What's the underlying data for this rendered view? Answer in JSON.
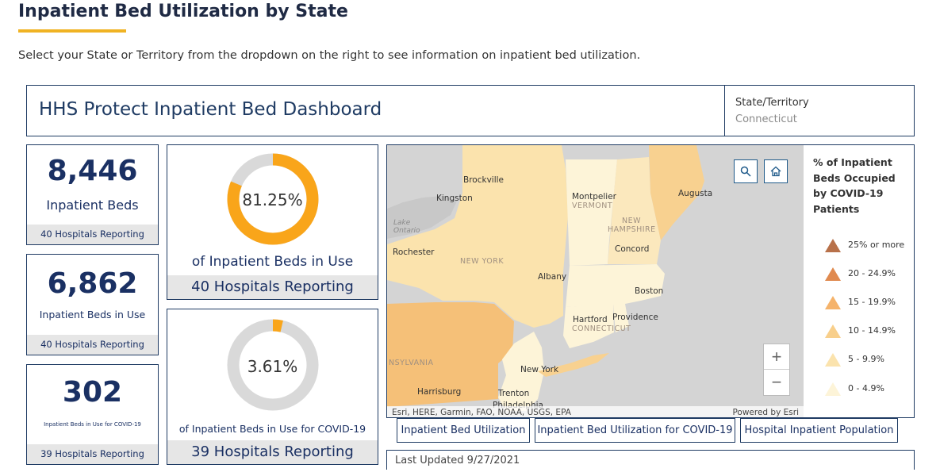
{
  "page": {
    "title": "Inpatient Bed Utilization by State",
    "intro": "Select your State or Territory from the dropdown on the right to see information on inpatient bed utilization."
  },
  "dashboard": {
    "title": "HHS Protect Inpatient Bed Dashboard",
    "state_label": "State/Territory",
    "state_value": "Connecticut"
  },
  "stats": [
    {
      "value": "8,446",
      "label": "Inpatient Beds",
      "footer": "40 Hospitals Reporting"
    },
    {
      "value": "6,862",
      "label": "Inpatient Beds in Use",
      "footer": "40 Hospitals Reporting"
    },
    {
      "value": "302",
      "label": "Inpatient Beds in Use for COVID-19",
      "footer": "39 Hospitals Reporting"
    }
  ],
  "donuts": [
    {
      "percent_label": "81.25%",
      "percent": 81.25,
      "caption": "of Inpatient Beds in Use",
      "footer": "40 Hospitals Reporting"
    },
    {
      "percent_label": "3.61%",
      "percent": 3.61,
      "caption": "of Inpatient Beds in Use for COVID-19",
      "footer": "39 Hospitals Reporting"
    }
  ],
  "colors": {
    "accent": "#f0b323",
    "navy": "#1f3b63",
    "donut_fill": "#f9a51a",
    "donut_track": "#d9d9d9"
  },
  "map": {
    "search_icon": "search-icon",
    "home_icon": "home-icon",
    "zoom_in": "+",
    "zoom_out": "−",
    "attribution_left": "Esri, HERE, Garmin, FAO, NOAA, USGS, EPA",
    "attribution_right": "Powered by Esri",
    "labels": {
      "brockville": "Brockville",
      "kingston": "Kingston",
      "lake_ontario": "Lake Ontario",
      "rochester": "Rochester",
      "new_york_state": "NEW YORK",
      "albany": "Albany",
      "montpelier": "Montpelier",
      "vermont": "VERMONT",
      "new_hampshire": "NEW HAMPSHIRE",
      "augusta": "Augusta",
      "concord": "Concord",
      "boston": "Boston",
      "hartford": "Hartford",
      "providence": "Providence",
      "connecticut": "CONNECTICUT",
      "pennsylvania": "NSYLVANIA",
      "new_york_city": "New York",
      "harrisburg": "Harrisburg",
      "trenton": "Trenton",
      "philadelphia": "Philadelphia"
    }
  },
  "legend": {
    "title": "% of Inpatient Beds Occupied by COVID-19 Patients",
    "items": [
      {
        "label": "25% or more",
        "color": "#b8714a"
      },
      {
        "label": "20 - 24.9%",
        "color": "#e08a4f"
      },
      {
        "label": "15 - 19.9%",
        "color": "#f5b36b"
      },
      {
        "label": "10 - 14.9%",
        "color": "#f8cf8b"
      },
      {
        "label": "5 - 9.9%",
        "color": "#fbe3ad"
      },
      {
        "label": "0 - 4.9%",
        "color": "#fdf4d8"
      }
    ]
  },
  "tabs": [
    {
      "label": "Inpatient Bed Utilization"
    },
    {
      "label": "Inpatient Bed Utilization for COVID-19"
    },
    {
      "label": "Hospital Inpatient Population"
    }
  ],
  "last_updated": "Last Updated 9/27/2021"
}
